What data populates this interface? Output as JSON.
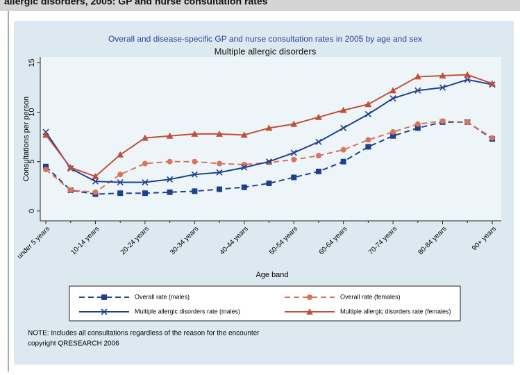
{
  "header": "allergic disorders, 2005: GP and nurse consultation rates",
  "chart_data": {
    "type": "line",
    "title": "Overall and disease-specific GP and nurse consultation rates in 2005 by age and sex",
    "subtitle": "Multiple allergic disorders",
    "x_label": "Age band",
    "y_label": "Consultations per person",
    "categories": [
      "under 5 years",
      null,
      "10-14 years",
      null,
      "20-24 years",
      null,
      "30-34 years",
      null,
      "40-44 years",
      null,
      "50-54 years",
      null,
      "60-64 years",
      null,
      "70-74 years",
      null,
      "80-84 years",
      null,
      "90+ years"
    ],
    "ylim": [
      -1,
      15.6
    ],
    "yticks": [
      0,
      5,
      10,
      15
    ],
    "series": [
      {
        "name": "Overall rate (males)",
        "color": "#1f3f8f",
        "dashed": true,
        "marker": "square",
        "values": [
          4.5,
          2.1,
          1.7,
          1.8,
          1.8,
          1.9,
          2.0,
          2.2,
          2.4,
          2.8,
          3.4,
          4.0,
          5.0,
          6.5,
          7.6,
          8.4,
          9.0,
          9.0,
          7.3
        ]
      },
      {
        "name": "Overall rate (females)",
        "color": "#d9735a",
        "dashed": true,
        "marker": "circle",
        "values": [
          4.2,
          2.1,
          1.9,
          3.7,
          4.8,
          5.0,
          5.0,
          4.8,
          4.7,
          4.9,
          5.2,
          5.6,
          6.2,
          7.2,
          8.0,
          8.8,
          9.1,
          9.0,
          7.4
        ]
      },
      {
        "name": "Multiple allergic disorders rate (males)",
        "color": "#1f3f8f",
        "dashed": false,
        "marker": "x",
        "values": [
          8.0,
          4.3,
          3.0,
          2.9,
          2.9,
          3.2,
          3.7,
          3.9,
          4.4,
          5.0,
          5.9,
          7.0,
          8.4,
          9.8,
          11.4,
          12.2,
          12.5,
          13.3,
          12.8
        ]
      },
      {
        "name": "Multiple allergic disorders rate (females)",
        "color": "#c0503a",
        "dashed": false,
        "marker": "triangle",
        "values": [
          7.7,
          4.4,
          3.5,
          5.7,
          7.4,
          7.6,
          7.8,
          7.8,
          7.7,
          8.4,
          8.8,
          9.5,
          10.2,
          10.8,
          12.2,
          13.6,
          13.7,
          13.8,
          12.9
        ]
      }
    ],
    "notes": [
      "NOTE: Includes all consultations regardless of the reason for the encounter",
      "copyright QRESEARCH 2006"
    ]
  }
}
